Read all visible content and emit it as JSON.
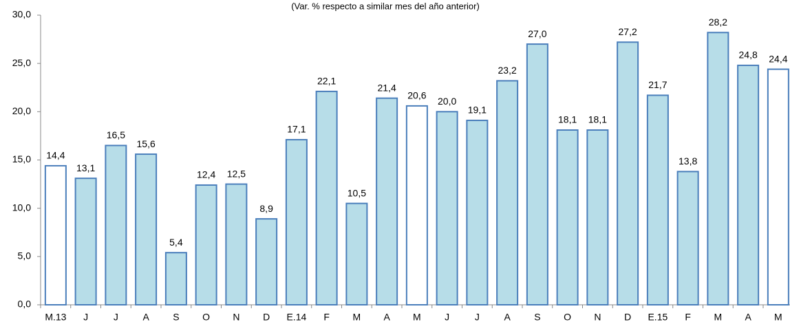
{
  "chart_data": {
    "type": "bar",
    "subtitle": "(Var. % respecto a similar mes del año anterior)",
    "categories": [
      "M.13",
      "J",
      "J",
      "A",
      "S",
      "O",
      "N",
      "D",
      "E.14",
      "F",
      "M",
      "A",
      "M",
      "J",
      "J",
      "A",
      "S",
      "O",
      "N",
      "D",
      "E.15",
      "F",
      "M",
      "A",
      "M"
    ],
    "values": [
      14.4,
      13.1,
      16.5,
      15.6,
      5.4,
      12.4,
      12.5,
      8.9,
      17.1,
      22.1,
      10.5,
      21.4,
      20.6,
      20.0,
      19.1,
      23.2,
      27.0,
      18.1,
      18.1,
      27.2,
      21.7,
      13.8,
      28.2,
      24.8,
      24.4
    ],
    "value_labels": [
      "14,4",
      "13,1",
      "16,5",
      "15,6",
      "5,4",
      "12,4",
      "12,5",
      "8,9",
      "17,1",
      "22,1",
      "10,5",
      "21,4",
      "20,6",
      "20,0",
      "19,1",
      "23,2",
      "27,0",
      "18,1",
      "18,1",
      "27,2",
      "21,7",
      "13,8",
      "28,2",
      "24,8",
      "24,4"
    ],
    "colors": [
      "#ffffff",
      "#b7dde8",
      "#b7dde8",
      "#b7dde8",
      "#b7dde8",
      "#b7dde8",
      "#b7dde8",
      "#b7dde8",
      "#b7dde8",
      "#b7dde8",
      "#b7dde8",
      "#b7dde8",
      "#ffffff",
      "#b7dde8",
      "#b7dde8",
      "#b7dde8",
      "#b7dde8",
      "#b7dde8",
      "#b7dde8",
      "#b7dde8",
      "#b7dde8",
      "#b7dde8",
      "#b7dde8",
      "#b7dde8",
      "#ffffff"
    ],
    "edge_color": "#4a7ebb",
    "ylim": [
      0,
      30
    ],
    "yticks": [
      {
        "value": 0,
        "label": "0,0"
      },
      {
        "value": 5,
        "label": "5,0"
      },
      {
        "value": 10,
        "label": "10,0"
      },
      {
        "value": 15,
        "label": "15,0"
      },
      {
        "value": 20,
        "label": "20,0"
      },
      {
        "value": 25,
        "label": "25,0"
      },
      {
        "value": 30,
        "label": "30,0"
      }
    ],
    "grid": false
  }
}
